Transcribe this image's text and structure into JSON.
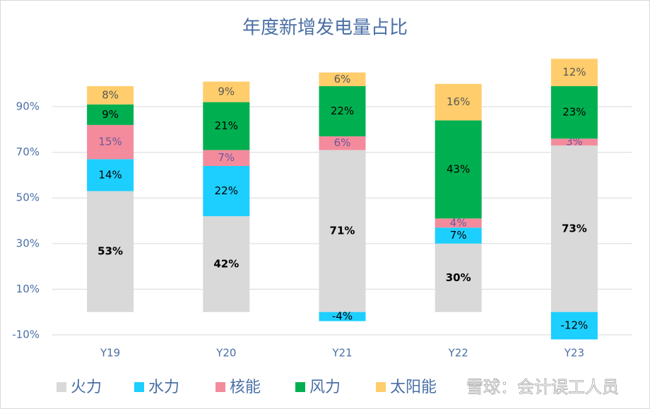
{
  "chart_data": {
    "type": "stacked-bar",
    "title": "年度新增发电量占比",
    "categories": [
      "Y19",
      "Y20",
      "Y21",
      "Y22",
      "Y23"
    ],
    "series": [
      {
        "name": "火力",
        "color": "#d9d9d9",
        "values": [
          53,
          42,
          71,
          30,
          73
        ],
        "value_labels": [
          "53%",
          "42%",
          "71%",
          "30%",
          "73%"
        ]
      },
      {
        "name": "水力",
        "color": "#1ccfff",
        "values": [
          14,
          22,
          -4,
          7,
          -12
        ],
        "value_labels": [
          "14%",
          "22%",
          "-4%",
          "7%",
          "-12%"
        ]
      },
      {
        "name": "核能",
        "color": "#f48b9d",
        "values": [
          15,
          7,
          6,
          4,
          3
        ],
        "value_labels": [
          "15%",
          "7%",
          "6%",
          "4%",
          "3%"
        ]
      },
      {
        "name": "风力",
        "color": "#00b050",
        "values": [
          9,
          21,
          22,
          43,
          23
        ],
        "value_labels": [
          "9%",
          "21%",
          "22%",
          "43%",
          "23%"
        ]
      },
      {
        "name": "太阳能",
        "color": "#ffcd6b",
        "values": [
          8,
          9,
          6,
          16,
          12
        ],
        "value_labels": [
          "8%",
          "9%",
          "6%",
          "16%",
          "12%"
        ]
      }
    ],
    "ylim": [
      -10,
      112
    ],
    "yticks": [
      {
        "value": -10,
        "label": "-10%"
      },
      {
        "value": 10,
        "label": "10%"
      },
      {
        "value": 30,
        "label": "30%"
      },
      {
        "value": 50,
        "label": "50%"
      },
      {
        "value": 70,
        "label": "70%"
      },
      {
        "value": 90,
        "label": "90%"
      }
    ],
    "grid": true,
    "legend": "bottom",
    "watermark": "雪球：会计误工人员"
  }
}
